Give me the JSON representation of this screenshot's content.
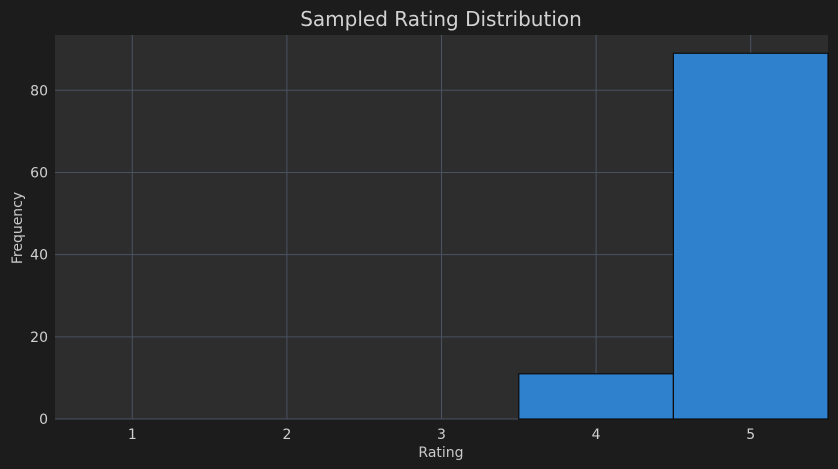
{
  "chart_data": {
    "type": "bar",
    "title": "Sampled Rating Distribution",
    "xlabel": "Rating",
    "ylabel": "Frequency",
    "categories": [
      1,
      2,
      3,
      4,
      5
    ],
    "values": [
      0,
      0,
      0,
      11,
      89
    ],
    "xlim": [
      0.5,
      5.5
    ],
    "ylim": [
      0,
      93.45
    ],
    "x_ticks": [
      1,
      2,
      3,
      4,
      5
    ],
    "y_ticks": [
      0,
      20,
      40,
      60,
      80
    ],
    "grid": true,
    "colors": {
      "background": "#1c1c1c",
      "plot_background": "#2d2d2d",
      "bar": "#2f80cd",
      "bar_edge": "#0d0d0d",
      "grid": "#4a5262",
      "text": "#d0d0d0"
    }
  }
}
